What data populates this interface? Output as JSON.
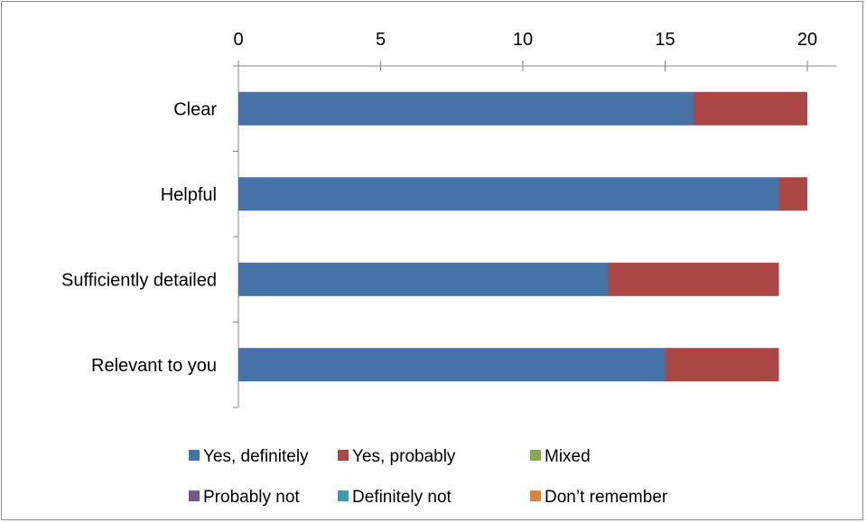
{
  "chart_data": {
    "type": "bar",
    "orientation": "horizontal",
    "stacked": true,
    "title": "",
    "xlabel": "",
    "ylabel": "",
    "xlim": [
      0,
      20
    ],
    "x_ticks": [
      "0",
      "5",
      "10",
      "15",
      "20"
    ],
    "x_axis_position": "top",
    "grid": false,
    "legend_position": "bottom",
    "categories": [
      "Clear",
      "Helpful",
      "Sufficiently detailed",
      "Relevant to you"
    ],
    "series": [
      {
        "name": "Yes, definitely",
        "color": "#4572a7",
        "values": [
          16,
          19,
          13,
          15
        ]
      },
      {
        "name": "Yes, probably",
        "color": "#aa4643",
        "values": [
          4,
          1,
          6,
          4
        ]
      },
      {
        "name": "Mixed",
        "color": "#89a54e",
        "values": [
          0,
          0,
          0,
          0
        ]
      },
      {
        "name": "Probably not",
        "color": "#71588f",
        "values": [
          0,
          0,
          0,
          0
        ]
      },
      {
        "name": "Definitely not",
        "color": "#4198af",
        "values": [
          0,
          0,
          0,
          0
        ]
      },
      {
        "name": "Don’t remember",
        "color": "#db843d",
        "values": [
          0,
          0,
          0,
          0
        ]
      }
    ]
  }
}
